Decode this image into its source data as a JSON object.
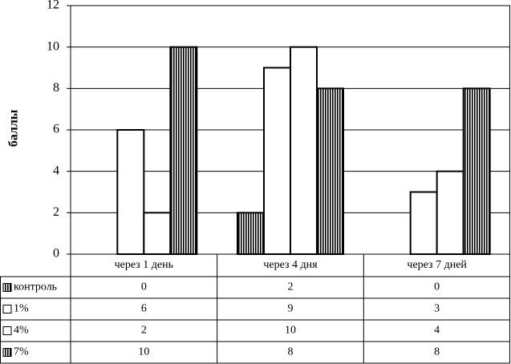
{
  "chart_data": {
    "type": "bar",
    "ylabel": "баллы",
    "categories": [
      "через 1 день",
      "через 4 дня",
      "через 7 дней"
    ],
    "series": [
      {
        "name": "контроль",
        "color": "#000000",
        "pattern": "vertical",
        "values": [
          0,
          2,
          0
        ]
      },
      {
        "name": "1%",
        "color": "#ffffff",
        "values": [
          6,
          9,
          3
        ]
      },
      {
        "name": "4%",
        "color": "#ffffff",
        "values": [
          2,
          10,
          4
        ]
      },
      {
        "name": "7%",
        "color": "#000000",
        "pattern": "vertical",
        "values": [
          10,
          8,
          8
        ]
      }
    ],
    "ylim": [
      0,
      12
    ],
    "yticks": [
      0,
      2,
      4,
      6,
      8,
      10,
      12
    ],
    "grid": true,
    "legend": "table"
  }
}
